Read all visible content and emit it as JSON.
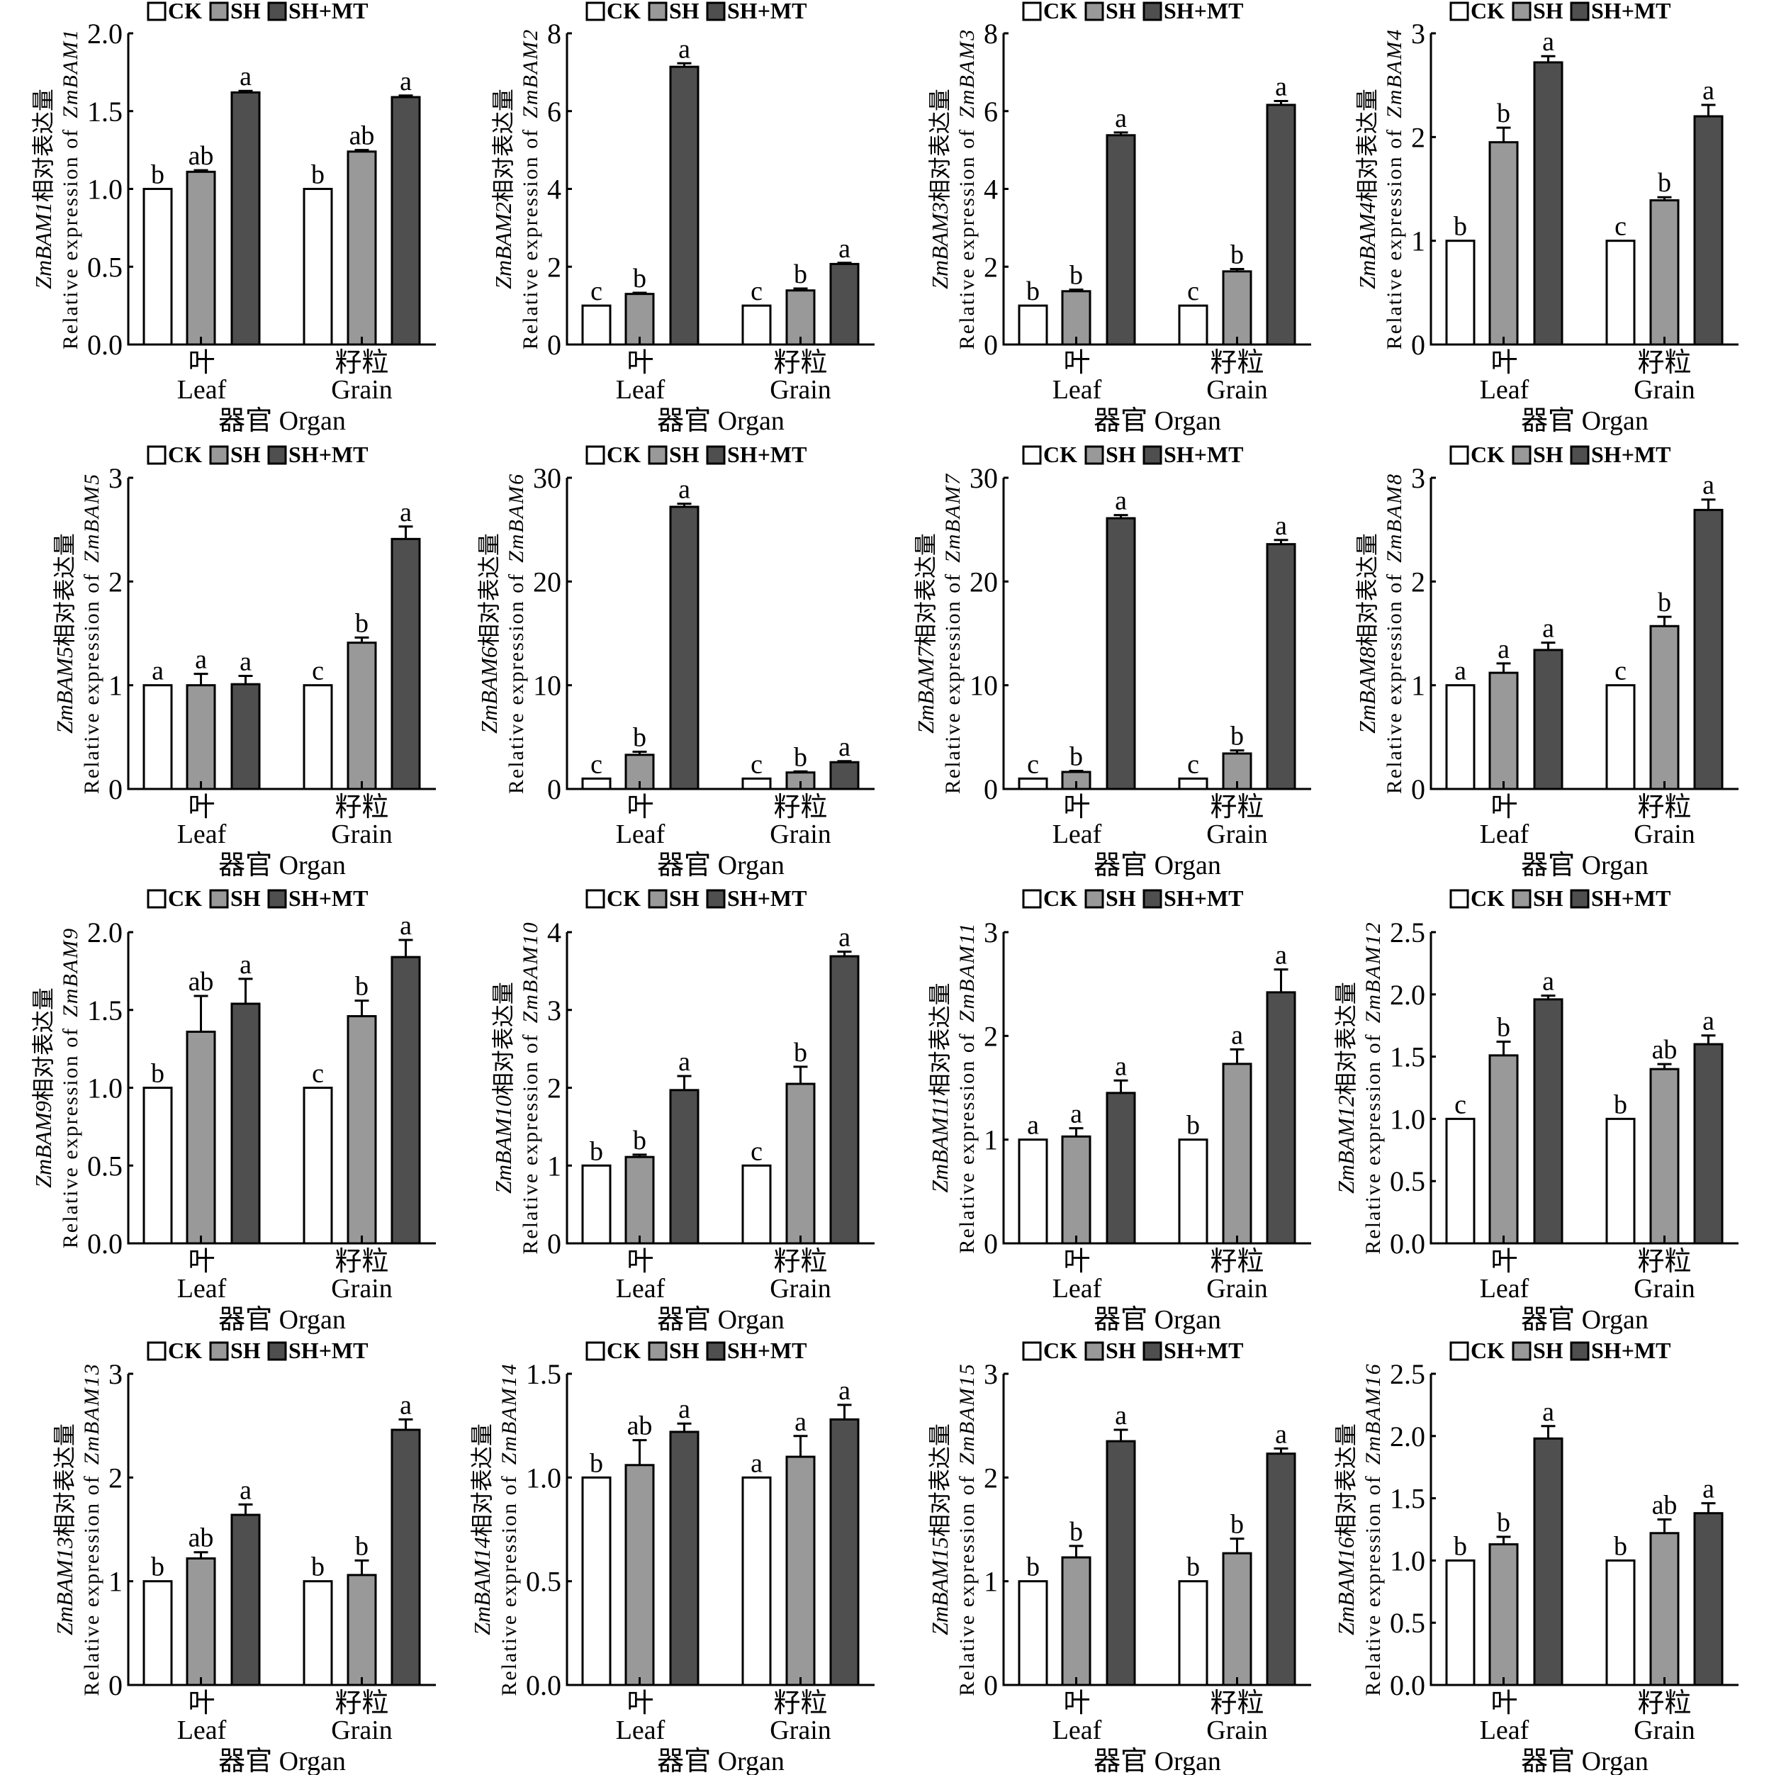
{
  "series_colors": {
    "CK": "#ffffff",
    "SH": "#999999",
    "SH+MT": "#4f4f4f"
  },
  "chart_data": [
    {
      "type": "bar",
      "gene": "ZmBAM1",
      "ylabel_cn": "相对表达量",
      "ylabel_en": "Relative expression of",
      "xlabel": "器官 Organ",
      "categories": [
        [
          "叶",
          "Leaf"
        ],
        [
          "籽粒",
          "Grain"
        ]
      ],
      "ylim": [
        0,
        2
      ],
      "yticks": [
        "0.0",
        "0.5",
        "1.0",
        "1.5",
        "2.0"
      ],
      "legend": "top",
      "series": [
        {
          "name": "CK",
          "values": [
            1.0,
            1.0
          ],
          "errors": [
            0,
            0
          ],
          "letters": [
            "b",
            "b"
          ]
        },
        {
          "name": "SH",
          "values": [
            1.11,
            1.24
          ],
          "errors": [
            0.01,
            0.01
          ],
          "letters": [
            "ab",
            "ab"
          ]
        },
        {
          "name": "SH+MT",
          "values": [
            1.62,
            1.59
          ],
          "errors": [
            0.01,
            0.01
          ],
          "letters": [
            "a",
            "a"
          ]
        }
      ]
    },
    {
      "type": "bar",
      "gene": "ZmBAM2",
      "ylabel_cn": "相对表达量",
      "ylabel_en": "Relative expression of",
      "xlabel": "器官 Organ",
      "categories": [
        [
          "叶",
          "Leaf"
        ],
        [
          "籽粒",
          "Grain"
        ]
      ],
      "ylim": [
        0,
        8
      ],
      "yticks": [
        "0",
        "2",
        "4",
        "6",
        "8"
      ],
      "legend": "top",
      "series": [
        {
          "name": "CK",
          "values": [
            1.0,
            1.0
          ],
          "errors": [
            0,
            0
          ],
          "letters": [
            "c",
            "c"
          ]
        },
        {
          "name": "SH",
          "values": [
            1.3,
            1.39
          ],
          "errors": [
            0.03,
            0.05
          ],
          "letters": [
            "b",
            "b"
          ]
        },
        {
          "name": "SH+MT",
          "values": [
            7.14,
            2.07
          ],
          "errors": [
            0.09,
            0.03
          ],
          "letters": [
            "a",
            "a"
          ]
        }
      ]
    },
    {
      "type": "bar",
      "gene": "ZmBAM3",
      "ylabel_cn": "相对表达量",
      "ylabel_en": "Relative expression of",
      "xlabel": "器官 Organ",
      "categories": [
        [
          "叶",
          "Leaf"
        ],
        [
          "籽粒",
          "Grain"
        ]
      ],
      "ylim": [
        0,
        8
      ],
      "yticks": [
        "0",
        "2",
        "4",
        "6",
        "8"
      ],
      "legend": "top",
      "series": [
        {
          "name": "CK",
          "values": [
            1.0,
            1.0
          ],
          "errors": [
            0,
            0
          ],
          "letters": [
            "b",
            "c"
          ]
        },
        {
          "name": "SH",
          "values": [
            1.37,
            1.88
          ],
          "errors": [
            0.04,
            0.06
          ],
          "letters": [
            "b",
            "b"
          ]
        },
        {
          "name": "SH+MT",
          "values": [
            5.38,
            6.16
          ],
          "errors": [
            0.07,
            0.1
          ],
          "letters": [
            "a",
            "a"
          ]
        }
      ]
    },
    {
      "type": "bar",
      "gene": "ZmBAM4",
      "ylabel_cn": "相对表达量",
      "ylabel_en": "Relative expression of",
      "xlabel": "器官 Organ",
      "categories": [
        [
          "叶",
          "Leaf"
        ],
        [
          "籽粒",
          "Grain"
        ]
      ],
      "ylim": [
        0,
        3
      ],
      "yticks": [
        "0",
        "1",
        "2",
        "3"
      ],
      "legend": "top",
      "series": [
        {
          "name": "CK",
          "values": [
            1.0,
            1.0
          ],
          "errors": [
            0,
            0
          ],
          "letters": [
            "b",
            "c"
          ]
        },
        {
          "name": "SH",
          "values": [
            1.95,
            1.39
          ],
          "errors": [
            0.14,
            0.03
          ],
          "letters": [
            "b",
            "b"
          ]
        },
        {
          "name": "SH+MT",
          "values": [
            2.72,
            2.2
          ],
          "errors": [
            0.06,
            0.11
          ],
          "letters": [
            "a",
            "a"
          ]
        }
      ]
    },
    {
      "type": "bar",
      "gene": "ZmBAM5",
      "ylabel_cn": "相对表达量",
      "ylabel_en": "Relative expression of",
      "xlabel": "器官 Organ",
      "categories": [
        [
          "叶",
          "Leaf"
        ],
        [
          "籽粒",
          "Grain"
        ]
      ],
      "ylim": [
        0,
        3
      ],
      "yticks": [
        "0",
        "1",
        "2",
        "3"
      ],
      "legend": "top",
      "series": [
        {
          "name": "CK",
          "values": [
            1.0,
            1.0
          ],
          "errors": [
            0,
            0
          ],
          "letters": [
            "a",
            "c"
          ]
        },
        {
          "name": "SH",
          "values": [
            1.0,
            1.41
          ],
          "errors": [
            0.11,
            0.05
          ],
          "letters": [
            "a",
            "b"
          ]
        },
        {
          "name": "SH+MT",
          "values": [
            1.01,
            2.41
          ],
          "errors": [
            0.08,
            0.12
          ],
          "letters": [
            "a",
            "a"
          ]
        }
      ]
    },
    {
      "type": "bar",
      "gene": "ZmBAM6",
      "ylabel_cn": "相对表达量",
      "ylabel_en": "Relative expression of",
      "xlabel": "器官 Organ",
      "categories": [
        [
          "叶",
          "Leaf"
        ],
        [
          "籽粒",
          "Grain"
        ]
      ],
      "ylim": [
        0,
        30
      ],
      "yticks": [
        "0",
        "10",
        "20",
        "30"
      ],
      "legend": "top",
      "series": [
        {
          "name": "CK",
          "values": [
            1.0,
            1.0
          ],
          "errors": [
            0,
            0
          ],
          "letters": [
            "c",
            "c"
          ]
        },
        {
          "name": "SH",
          "values": [
            3.29,
            1.59
          ],
          "errors": [
            0.3,
            0.1
          ],
          "letters": [
            "b",
            "b"
          ]
        },
        {
          "name": "SH+MT",
          "values": [
            27.2,
            2.58
          ],
          "errors": [
            0.3,
            0.1
          ],
          "letters": [
            "a",
            "a"
          ]
        }
      ]
    },
    {
      "type": "bar",
      "gene": "ZmBAM7",
      "ylabel_cn": "相对表达量",
      "ylabel_en": "Relative expression of",
      "xlabel": "器官 Organ",
      "categories": [
        [
          "叶",
          "Leaf"
        ],
        [
          "籽粒",
          "Grain"
        ]
      ],
      "ylim": [
        0,
        30
      ],
      "yticks": [
        "0",
        "10",
        "20",
        "30"
      ],
      "legend": "top",
      "series": [
        {
          "name": "CK",
          "values": [
            1.0,
            1.0
          ],
          "errors": [
            0,
            0
          ],
          "letters": [
            "c",
            "c"
          ]
        },
        {
          "name": "SH",
          "values": [
            1.64,
            3.42
          ],
          "errors": [
            0.1,
            0.3
          ],
          "letters": [
            "b",
            "b"
          ]
        },
        {
          "name": "SH+MT",
          "values": [
            26.1,
            23.6
          ],
          "errors": [
            0.3,
            0.4
          ],
          "letters": [
            "a",
            "a"
          ]
        }
      ]
    },
    {
      "type": "bar",
      "gene": "ZmBAM8",
      "ylabel_cn": "相对表达量",
      "ylabel_en": "Relative expression of",
      "xlabel": "器官 Organ",
      "categories": [
        [
          "叶",
          "Leaf"
        ],
        [
          "籽粒",
          "Grain"
        ]
      ],
      "ylim": [
        0,
        3
      ],
      "yticks": [
        "0",
        "1",
        "2",
        "3"
      ],
      "legend": "top",
      "series": [
        {
          "name": "CK",
          "values": [
            1.0,
            1.0
          ],
          "errors": [
            0,
            0
          ],
          "letters": [
            "a",
            "c"
          ]
        },
        {
          "name": "SH",
          "values": [
            1.12,
            1.57
          ],
          "errors": [
            0.09,
            0.09
          ],
          "letters": [
            "a",
            "b"
          ]
        },
        {
          "name": "SH+MT",
          "values": [
            1.34,
            2.69
          ],
          "errors": [
            0.07,
            0.1
          ],
          "letters": [
            "a",
            "a"
          ]
        }
      ]
    },
    {
      "type": "bar",
      "gene": "ZmBAM9",
      "ylabel_cn": "相对表达量",
      "ylabel_en": "Relative expression of",
      "xlabel": "器官 Organ",
      "categories": [
        [
          "叶",
          "Leaf"
        ],
        [
          "籽粒",
          "Grain"
        ]
      ],
      "ylim": [
        0,
        2
      ],
      "yticks": [
        "0.0",
        "0.5",
        "1.0",
        "1.5",
        "2.0"
      ],
      "legend": "top",
      "series": [
        {
          "name": "CK",
          "values": [
            1.0,
            1.0
          ],
          "errors": [
            0,
            0
          ],
          "letters": [
            "b",
            "c"
          ]
        },
        {
          "name": "SH",
          "values": [
            1.36,
            1.46
          ],
          "errors": [
            0.23,
            0.1
          ],
          "letters": [
            "ab",
            "b"
          ]
        },
        {
          "name": "SH+MT",
          "values": [
            1.54,
            1.84
          ],
          "errors": [
            0.16,
            0.11
          ],
          "letters": [
            "a",
            "a"
          ]
        }
      ]
    },
    {
      "type": "bar",
      "gene": "ZmBAM10",
      "ylabel_cn": "相对表达量",
      "ylabel_en": "Relative expression of",
      "xlabel": "器官 Organ",
      "categories": [
        [
          "叶",
          "Leaf"
        ],
        [
          "籽粒",
          "Grain"
        ]
      ],
      "ylim": [
        0,
        4
      ],
      "yticks": [
        "0",
        "1",
        "2",
        "3",
        "4"
      ],
      "legend": "top",
      "series": [
        {
          "name": "CK",
          "values": [
            1.0,
            1.0
          ],
          "errors": [
            0,
            0
          ],
          "letters": [
            "b",
            "c"
          ]
        },
        {
          "name": "SH",
          "values": [
            1.11,
            2.05
          ],
          "errors": [
            0.03,
            0.22
          ],
          "letters": [
            "b",
            "b"
          ]
        },
        {
          "name": "SH+MT",
          "values": [
            1.97,
            3.69
          ],
          "errors": [
            0.18,
            0.06
          ],
          "letters": [
            "a",
            "a"
          ]
        }
      ]
    },
    {
      "type": "bar",
      "gene": "ZmBAM11",
      "ylabel_cn": "相对表达量",
      "ylabel_en": "Relative expression of",
      "xlabel": "器官 Organ",
      "categories": [
        [
          "叶",
          "Leaf"
        ],
        [
          "籽粒",
          "Grain"
        ]
      ],
      "ylim": [
        0,
        3
      ],
      "yticks": [
        "0",
        "1",
        "2",
        "3"
      ],
      "legend": "top",
      "series": [
        {
          "name": "CK",
          "values": [
            1.0,
            1.0
          ],
          "errors": [
            0,
            0
          ],
          "letters": [
            "a",
            "b"
          ]
        },
        {
          "name": "SH",
          "values": [
            1.03,
            1.73
          ],
          "errors": [
            0.08,
            0.14
          ],
          "letters": [
            "a",
            "a"
          ]
        },
        {
          "name": "SH+MT",
          "values": [
            1.45,
            2.42
          ],
          "errors": [
            0.12,
            0.22
          ],
          "letters": [
            "a",
            "a"
          ]
        }
      ]
    },
    {
      "type": "bar",
      "gene": "ZmBAM12",
      "ylabel_cn": "相对表达量",
      "ylabel_en": "Relative expression of",
      "xlabel": "器官 Organ",
      "categories": [
        [
          "叶",
          "Leaf"
        ],
        [
          "籽粒",
          "Grain"
        ]
      ],
      "ylim": [
        0,
        2.5
      ],
      "yticks": [
        "0.0",
        "0.5",
        "1.0",
        "1.5",
        "2.0",
        "2.5"
      ],
      "legend": "top",
      "series": [
        {
          "name": "CK",
          "values": [
            1.0,
            1.0
          ],
          "errors": [
            0,
            0
          ],
          "letters": [
            "c",
            "b"
          ]
        },
        {
          "name": "SH",
          "values": [
            1.51,
            1.4
          ],
          "errors": [
            0.11,
            0.04
          ],
          "letters": [
            "b",
            "ab"
          ]
        },
        {
          "name": "SH+MT",
          "values": [
            1.96,
            1.6
          ],
          "errors": [
            0.03,
            0.07
          ],
          "letters": [
            "a",
            "a"
          ]
        }
      ]
    },
    {
      "type": "bar",
      "gene": "ZmBAM13",
      "ylabel_cn": "相对表达量",
      "ylabel_en": "Relative expression of",
      "xlabel": "器官 Organ",
      "categories": [
        [
          "叶",
          "Leaf"
        ],
        [
          "籽粒",
          "Grain"
        ]
      ],
      "ylim": [
        0,
        3
      ],
      "yticks": [
        "0",
        "1",
        "2",
        "3"
      ],
      "legend": "top",
      "series": [
        {
          "name": "CK",
          "values": [
            1.0,
            1.0
          ],
          "errors": [
            0,
            0
          ],
          "letters": [
            "b",
            "b"
          ]
        },
        {
          "name": "SH",
          "values": [
            1.22,
            1.06
          ],
          "errors": [
            0.06,
            0.14
          ],
          "letters": [
            "ab",
            "b"
          ]
        },
        {
          "name": "SH+MT",
          "values": [
            1.64,
            2.46
          ],
          "errors": [
            0.1,
            0.1
          ],
          "letters": [
            "a",
            "a"
          ]
        }
      ]
    },
    {
      "type": "bar",
      "gene": "ZmBAM14",
      "ylabel_cn": "相对表达量",
      "ylabel_en": "Relative expression of",
      "xlabel": "器官 Organ",
      "categories": [
        [
          "叶",
          "Leaf"
        ],
        [
          "籽粒",
          "Grain"
        ]
      ],
      "ylim": [
        0,
        1.5
      ],
      "yticks": [
        "0.0",
        "0.5",
        "1.0",
        "1.5"
      ],
      "legend": "top",
      "series": [
        {
          "name": "CK",
          "values": [
            1.0,
            1.0
          ],
          "errors": [
            0,
            0
          ],
          "letters": [
            "b",
            "a"
          ]
        },
        {
          "name": "SH",
          "values": [
            1.06,
            1.1
          ],
          "errors": [
            0.12,
            0.1
          ],
          "letters": [
            "ab",
            "a"
          ]
        },
        {
          "name": "SH+MT",
          "values": [
            1.22,
            1.28
          ],
          "errors": [
            0.04,
            0.07
          ],
          "letters": [
            "a",
            "a"
          ]
        }
      ]
    },
    {
      "type": "bar",
      "gene": "ZmBAM15",
      "ylabel_cn": "相对表达量",
      "ylabel_en": "Relative expression of",
      "xlabel": "器官 Organ",
      "categories": [
        [
          "叶",
          "Leaf"
        ],
        [
          "籽粒",
          "Grain"
        ]
      ],
      "ylim": [
        0,
        3
      ],
      "yticks": [
        "0",
        "1",
        "2",
        "3"
      ],
      "legend": "top",
      "series": [
        {
          "name": "CK",
          "values": [
            1.0,
            1.0
          ],
          "errors": [
            0,
            0
          ],
          "letters": [
            "b",
            "b"
          ]
        },
        {
          "name": "SH",
          "values": [
            1.23,
            1.27
          ],
          "errors": [
            0.11,
            0.14
          ],
          "letters": [
            "b",
            "b"
          ]
        },
        {
          "name": "SH+MT",
          "values": [
            2.35,
            2.23
          ],
          "errors": [
            0.11,
            0.05
          ],
          "letters": [
            "a",
            "a"
          ]
        }
      ]
    },
    {
      "type": "bar",
      "gene": "ZmBAM16",
      "ylabel_cn": "相对表达量",
      "ylabel_en": "Relative expression of",
      "xlabel": "器官 Organ",
      "categories": [
        [
          "叶",
          "Leaf"
        ],
        [
          "籽粒",
          "Grain"
        ]
      ],
      "ylim": [
        0,
        2.5
      ],
      "yticks": [
        "0.0",
        "0.5",
        "1.0",
        "1.5",
        "2.0",
        "2.5"
      ],
      "legend": "top",
      "series": [
        {
          "name": "CK",
          "values": [
            1.0,
            1.0
          ],
          "errors": [
            0,
            0
          ],
          "letters": [
            "b",
            "b"
          ]
        },
        {
          "name": "SH",
          "values": [
            1.13,
            1.22
          ],
          "errors": [
            0.06,
            0.11
          ],
          "letters": [
            "b",
            "ab"
          ]
        },
        {
          "name": "SH+MT",
          "values": [
            1.98,
            1.38
          ],
          "errors": [
            0.1,
            0.08
          ],
          "letters": [
            "a",
            "a"
          ]
        }
      ]
    }
  ]
}
